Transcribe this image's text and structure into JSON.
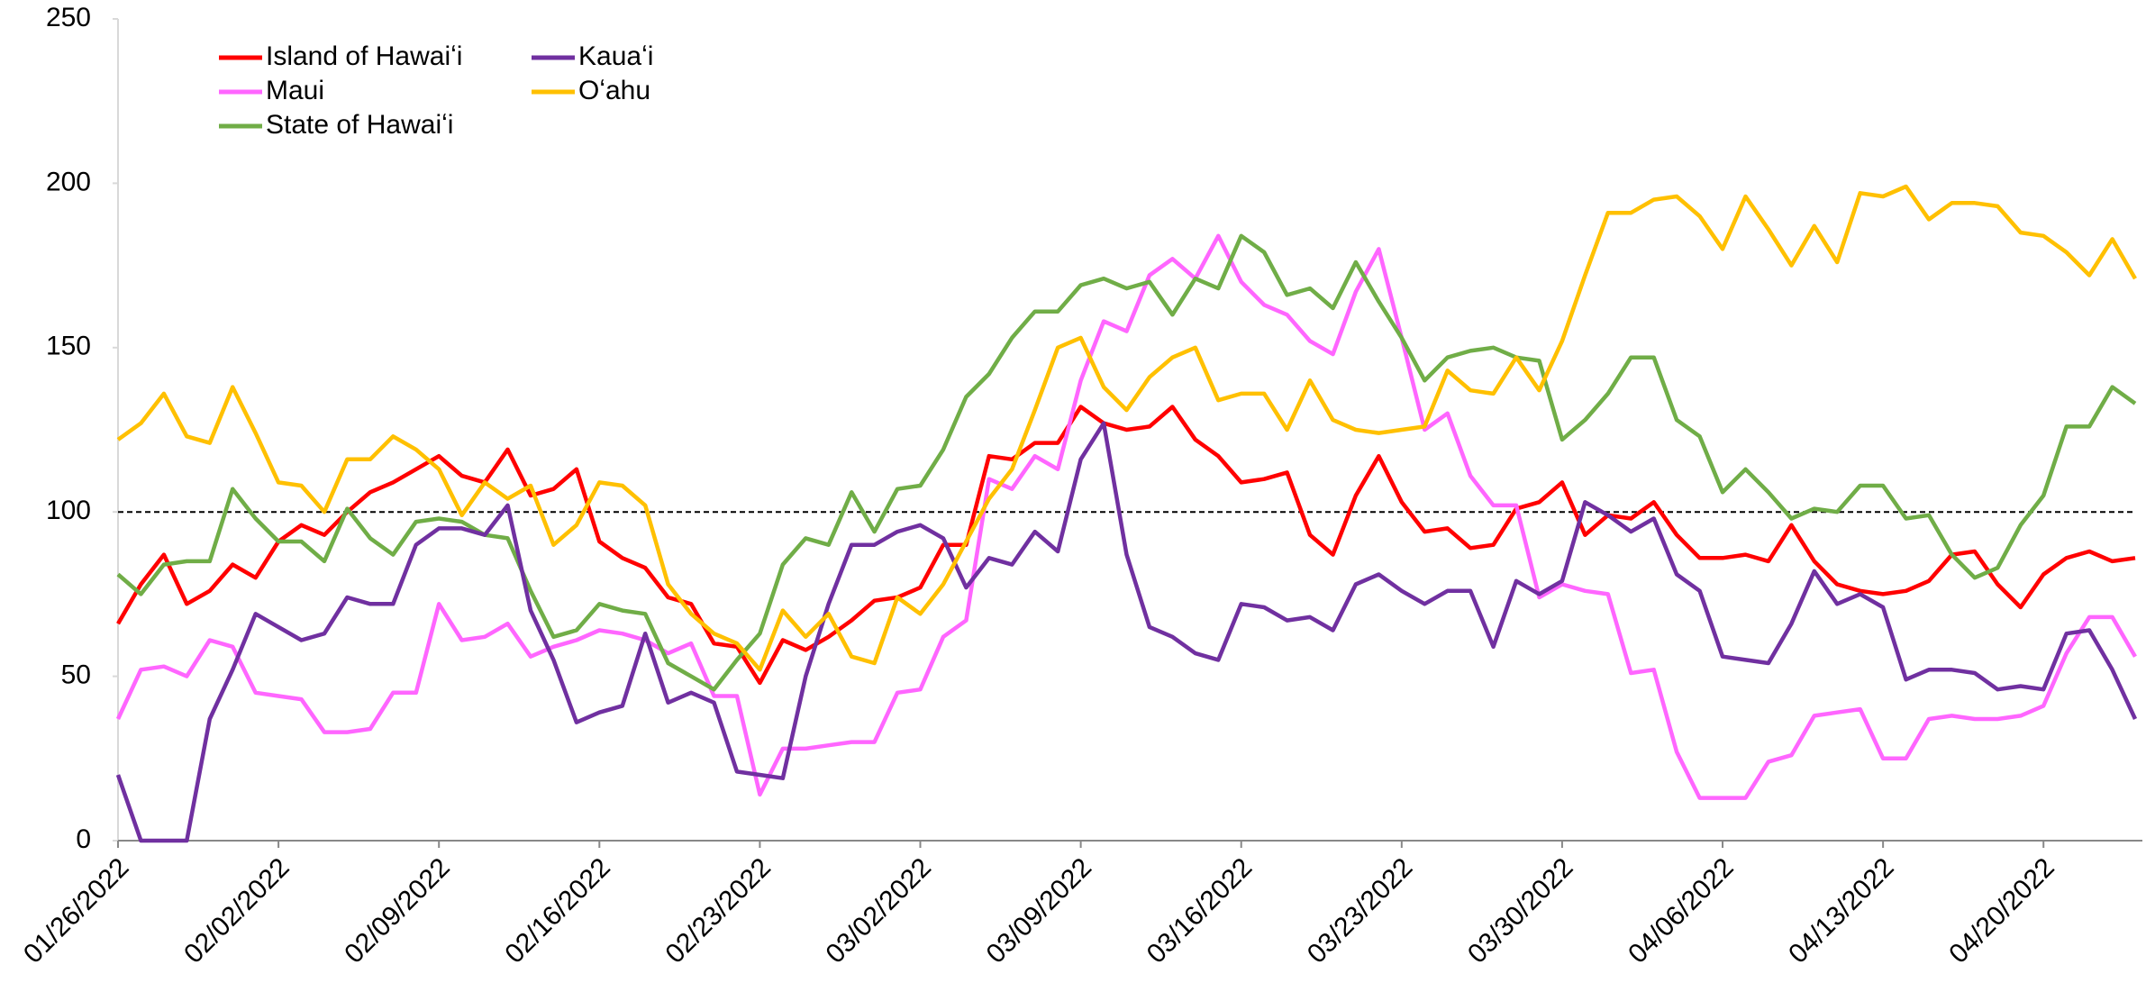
{
  "chart_data": {
    "type": "line",
    "x": [
      "01/26/2022",
      "01/27/2022",
      "01/28/2022",
      "01/29/2022",
      "01/30/2022",
      "01/31/2022",
      "02/01/2022",
      "02/02/2022",
      "02/03/2022",
      "02/04/2022",
      "02/05/2022",
      "02/06/2022",
      "02/07/2022",
      "02/08/2022",
      "02/09/2022",
      "02/10/2022",
      "02/11/2022",
      "02/12/2022",
      "02/13/2022",
      "02/14/2022",
      "02/15/2022",
      "02/16/2022",
      "02/17/2022",
      "02/18/2022",
      "02/19/2022",
      "02/20/2022",
      "02/21/2022",
      "02/22/2022",
      "02/23/2022",
      "02/24/2022",
      "02/25/2022",
      "02/26/2022",
      "02/27/2022",
      "02/28/2022",
      "03/01/2022",
      "03/02/2022",
      "03/03/2022",
      "03/04/2022",
      "03/05/2022",
      "03/06/2022",
      "03/07/2022",
      "03/08/2022",
      "03/09/2022",
      "03/10/2022",
      "03/11/2022",
      "03/12/2022",
      "03/13/2022",
      "03/14/2022",
      "03/15/2022",
      "03/16/2022",
      "03/17/2022",
      "03/18/2022",
      "03/19/2022",
      "03/20/2022",
      "03/21/2022",
      "03/22/2022",
      "03/23/2022",
      "03/24/2022",
      "03/25/2022",
      "03/26/2022",
      "03/27/2022",
      "03/28/2022",
      "03/29/2022",
      "03/30/2022",
      "03/31/2022",
      "04/01/2022",
      "04/02/2022",
      "04/03/2022",
      "04/04/2022",
      "04/05/2022",
      "04/06/2022",
      "04/07/2022",
      "04/08/2022",
      "04/09/2022",
      "04/10/2022",
      "04/11/2022",
      "04/12/2022",
      "04/13/2022",
      "04/14/2022",
      "04/15/2022",
      "04/16/2022",
      "04/17/2022",
      "04/18/2022",
      "04/19/2022",
      "04/20/2022",
      "04/21/2022",
      "04/22/2022",
      "04/23/2022",
      "04/24/2022"
    ],
    "xticks": [
      "01/26/2022",
      "02/02/2022",
      "02/09/2022",
      "02/16/2022",
      "02/23/2022",
      "03/02/2022",
      "03/09/2022",
      "03/16/2022",
      "03/23/2022",
      "03/30/2022",
      "04/06/2022",
      "04/13/2022",
      "04/20/2022"
    ],
    "series": [
      {
        "name": "Island of Hawaiʻi",
        "color": "#ff0000",
        "values": [
          66,
          78,
          87,
          72,
          76,
          84,
          80,
          91,
          96,
          93,
          100,
          106,
          109,
          113,
          117,
          111,
          109,
          119,
          105,
          107,
          113,
          91,
          86,
          83,
          74,
          72,
          60,
          59,
          48,
          61,
          58,
          62,
          67,
          73,
          74,
          77,
          90,
          90,
          117,
          116,
          121,
          121,
          132,
          127,
          125,
          126,
          132,
          122,
          117,
          109,
          110,
          112,
          93,
          87,
          105,
          117,
          103,
          94,
          95,
          89,
          90,
          101,
          103,
          109,
          93,
          99,
          98,
          103,
          93,
          86,
          86,
          87,
          85,
          96,
          85,
          78,
          76,
          75,
          76,
          79,
          87,
          88,
          78,
          71,
          81,
          86,
          88,
          85,
          86
        ]
      },
      {
        "name": "Maui",
        "color": "#ff66ff",
        "values": [
          37,
          52,
          53,
          50,
          61,
          59,
          45,
          44,
          43,
          33,
          33,
          34,
          45,
          45,
          72,
          61,
          62,
          66,
          56,
          59,
          61,
          64,
          63,
          61,
          57,
          60,
          44,
          44,
          14,
          28,
          28,
          29,
          30,
          30,
          45,
          46,
          62,
          67,
          110,
          107,
          117,
          113,
          140,
          158,
          155,
          172,
          177,
          171,
          184,
          170,
          163,
          160,
          152,
          148,
          167,
          180,
          153,
          125,
          130,
          111,
          102,
          102,
          74,
          78,
          76,
          75,
          51,
          52,
          27,
          13,
          13,
          13,
          24,
          26,
          38,
          39,
          40,
          25,
          25,
          37,
          38,
          37,
          37,
          38,
          41,
          57,
          68,
          68,
          56
        ]
      },
      {
        "name": "State of Hawaiʻi",
        "color": "#70ad47",
        "values": [
          81,
          75,
          84,
          85,
          85,
          107,
          98,
          91,
          91,
          85,
          101,
          92,
          87,
          97,
          98,
          97,
          93,
          92,
          76,
          62,
          64,
          72,
          70,
          69,
          54,
          50,
          46,
          55,
          63,
          84,
          92,
          90,
          106,
          94,
          107,
          108,
          119,
          135,
          142,
          153,
          161,
          161,
          169,
          171,
          168,
          170,
          160,
          171,
          168,
          184,
          179,
          166,
          168,
          162,
          176,
          164,
          153,
          140,
          147,
          149,
          150,
          147,
          146,
          122,
          128,
          136,
          147,
          147,
          128,
          123,
          106,
          113,
          106,
          98,
          101,
          100,
          108,
          108,
          98,
          99,
          87,
          80,
          83,
          96,
          105,
          126,
          126,
          138,
          133
        ]
      },
      {
        "name": "Kauaʻi",
        "color": "#7030a0",
        "values": [
          20,
          0,
          0,
          0,
          37,
          52,
          69,
          65,
          61,
          63,
          74,
          72,
          72,
          90,
          95,
          95,
          93,
          102,
          70,
          55,
          36,
          39,
          41,
          63,
          42,
          45,
          42,
          21,
          20,
          19,
          50,
          72,
          90,
          90,
          94,
          96,
          92,
          77,
          86,
          84,
          94,
          88,
          116,
          127,
          87,
          65,
          62,
          57,
          55,
          72,
          71,
          67,
          68,
          64,
          78,
          81,
          76,
          72,
          76,
          76,
          59,
          79,
          75,
          79,
          103,
          99,
          94,
          98,
          81,
          76,
          56,
          55,
          54,
          66,
          82,
          72,
          75,
          71,
          49,
          52,
          52,
          51,
          46,
          47,
          46,
          63,
          64,
          52,
          37
        ]
      },
      {
        "name": "Oʻahu",
        "color": "#ffc000",
        "values": [
          122,
          127,
          136,
          123,
          121,
          138,
          124,
          109,
          108,
          100,
          116,
          116,
          123,
          119,
          113,
          99,
          109,
          104,
          108,
          90,
          96,
          109,
          108,
          102,
          78,
          69,
          63,
          60,
          52,
          70,
          62,
          69,
          56,
          54,
          74,
          69,
          78,
          91,
          104,
          113,
          131,
          150,
          153,
          138,
          131,
          141,
          147,
          150,
          134,
          136,
          136,
          125,
          140,
          128,
          125,
          124,
          125,
          126,
          143,
          137,
          136,
          147,
          137,
          152,
          172,
          191,
          191,
          195,
          196,
          190,
          180,
          196,
          186,
          175,
          187,
          176,
          197,
          196,
          199,
          189,
          194,
          194,
          193,
          185,
          184,
          179,
          172,
          183,
          171
        ]
      }
    ],
    "ylim": [
      0,
      250
    ],
    "yticks": [
      0,
      50,
      100,
      150,
      200,
      250
    ],
    "reference_line": 100,
    "legend": "top-left",
    "grid": false
  }
}
